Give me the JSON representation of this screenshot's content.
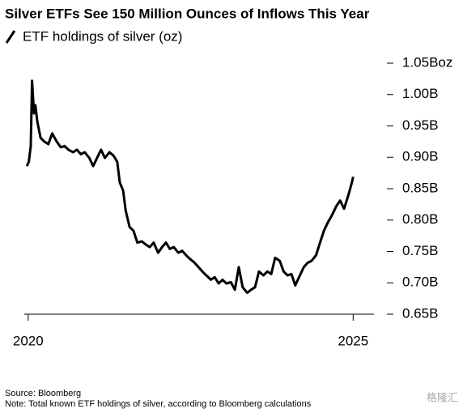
{
  "chart_data": {
    "type": "line",
    "title": "Silver ETFs See 150 Million Ounces of Inflows This Year",
    "source": "Source: Bloomberg",
    "note": "Note: Total known ETF holdings of silver, according to Bloomberg calculations",
    "watermark": "格隆汇",
    "xlim": [
      2019.94,
      2025.32
    ],
    "xticks": [
      2020,
      2025
    ],
    "ylim": [
      0.65,
      1.05
    ],
    "yticks": [
      {
        "value": 0.65,
        "label": "0.65B"
      },
      {
        "value": 0.7,
        "label": "0.70B"
      },
      {
        "value": 0.75,
        "label": "0.75B"
      },
      {
        "value": 0.8,
        "label": "0.80B"
      },
      {
        "value": 0.85,
        "label": "0.85B"
      },
      {
        "value": 0.9,
        "label": "0.90B"
      },
      {
        "value": 0.95,
        "label": "0.95B"
      },
      {
        "value": 1.0,
        "label": "1.00B"
      },
      {
        "value": 1.05,
        "label": "1.05Boz"
      }
    ],
    "x": [
      2019.98,
      2020.01,
      2020.04,
      2020.06,
      2020.09,
      2020.11,
      2020.14,
      2020.19,
      2020.25,
      2020.31,
      2020.37,
      2020.44,
      2020.5,
      2020.56,
      2020.62,
      2020.69,
      2020.75,
      2020.81,
      2020.87,
      2020.94,
      2021.0,
      2021.06,
      2021.12,
      2021.18,
      2021.25,
      2021.31,
      2021.37,
      2021.41,
      2021.46,
      2021.5,
      2021.56,
      2021.62,
      2021.68,
      2021.75,
      2021.81,
      2021.87,
      2021.93,
      2022.0,
      2022.06,
      2022.12,
      2022.18,
      2022.24,
      2022.31,
      2022.37,
      2022.43,
      2022.49,
      2022.56,
      2022.62,
      2022.68,
      2022.74,
      2022.81,
      2022.87,
      2022.93,
      2022.99,
      2023.05,
      2023.12,
      2023.18,
      2023.24,
      2023.3,
      2023.37,
      2023.43,
      2023.49,
      2023.55,
      2023.62,
      2023.68,
      2023.74,
      2023.8,
      2023.87,
      2023.93,
      2023.99,
      2024.05,
      2024.11,
      2024.18,
      2024.24,
      2024.3,
      2024.36,
      2024.43,
      2024.49,
      2024.55,
      2024.61,
      2024.68,
      2024.74,
      2024.8,
      2024.86,
      2024.93,
      2024.98,
      2025.0
    ],
    "series": [
      {
        "name": "ETF holdings of silver (oz)",
        "color": "#000000",
        "values": [
          0.886,
          0.893,
          0.918,
          1.022,
          0.97,
          0.983,
          0.957,
          0.931,
          0.925,
          0.921,
          0.938,
          0.925,
          0.916,
          0.918,
          0.912,
          0.908,
          0.912,
          0.905,
          0.908,
          0.899,
          0.886,
          0.899,
          0.912,
          0.899,
          0.908,
          0.903,
          0.893,
          0.86,
          0.847,
          0.815,
          0.789,
          0.783,
          0.764,
          0.766,
          0.761,
          0.757,
          0.764,
          0.748,
          0.757,
          0.764,
          0.754,
          0.757,
          0.748,
          0.751,
          0.744,
          0.738,
          0.732,
          0.725,
          0.718,
          0.712,
          0.705,
          0.709,
          0.699,
          0.705,
          0.699,
          0.701,
          0.689,
          0.725,
          0.693,
          0.684,
          0.689,
          0.693,
          0.718,
          0.712,
          0.718,
          0.714,
          0.74,
          0.735,
          0.718,
          0.712,
          0.714,
          0.696,
          0.712,
          0.725,
          0.732,
          0.735,
          0.744,
          0.764,
          0.783,
          0.796,
          0.809,
          0.822,
          0.831,
          0.818,
          0.841,
          0.86,
          0.869
        ]
      }
    ]
  }
}
